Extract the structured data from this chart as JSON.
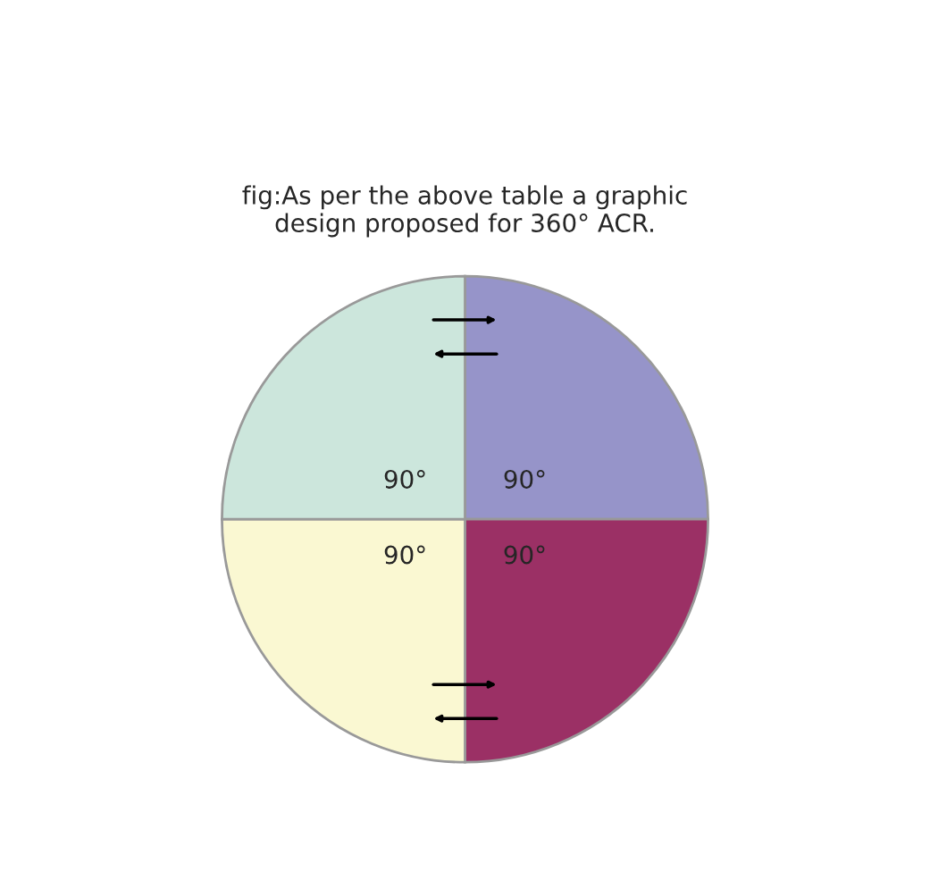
{
  "chart_data": {
    "type": "pie",
    "title": "fig:As per the above table a graphic\ndesign proposed for 360° ACR.",
    "categories": [
      null,
      null,
      null,
      null
    ],
    "values": [
      90,
      90,
      90,
      90
    ],
    "colors": [
      "#9694c9",
      "#9b3065",
      "#faf8d2",
      "#cce6dc"
    ],
    "value_labels": [
      "90°",
      "90°",
      "90°",
      "90°"
    ]
  }
}
